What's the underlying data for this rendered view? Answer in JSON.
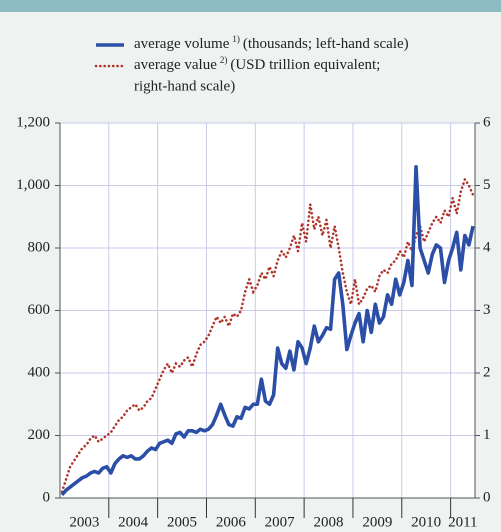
{
  "chart_data": {
    "type": "line",
    "categories": [
      null,
      null,
      null,
      null,
      null,
      "2003",
      null,
      null,
      null,
      null,
      null,
      null,
      null,
      null,
      null,
      null,
      null,
      "2004",
      null,
      null,
      null,
      null,
      null,
      null,
      null,
      null,
      null,
      null,
      null,
      "2005",
      null,
      null,
      null,
      null,
      null,
      null,
      null,
      null,
      null,
      null,
      null,
      "2006",
      null,
      null,
      null,
      null,
      null,
      null,
      null,
      null,
      null,
      null,
      null,
      "2007",
      null,
      null,
      null,
      null,
      null,
      null,
      null,
      null,
      null,
      null,
      null,
      "2008",
      null,
      null,
      null,
      null,
      null,
      null,
      null,
      null,
      null,
      null,
      null,
      "2009",
      null,
      null,
      null,
      null,
      null,
      null,
      null,
      null,
      null,
      null,
      null,
      "2010",
      null,
      null,
      null,
      null,
      null,
      null,
      null,
      null,
      "2011",
      null,
      null,
      null
    ],
    "series": [
      {
        "name": "average volume",
        "note": "1)",
        "description": [
          "(thousands; left-hand scale)"
        ],
        "color": "#2b4ea6",
        "axis": "y",
        "style": "solid",
        "values": [
          10,
          25,
          35,
          45,
          55,
          65,
          70,
          80,
          85,
          80,
          95,
          100,
          80,
          110,
          125,
          135,
          130,
          135,
          125,
          125,
          135,
          150,
          160,
          155,
          175,
          180,
          185,
          175,
          205,
          210,
          195,
          215,
          215,
          210,
          220,
          215,
          220,
          235,
          265,
          300,
          265,
          235,
          230,
          260,
          255,
          290,
          285,
          300,
          300,
          380,
          310,
          300,
          330,
          480,
          430,
          415,
          470,
          410,
          500,
          480,
          430,
          480,
          550,
          500,
          520,
          545,
          540,
          700,
          720,
          620,
          475,
          520,
          560,
          590,
          500,
          600,
          530,
          620,
          560,
          580,
          650,
          620,
          700,
          650,
          690,
          760,
          680,
          1060,
          800,
          760,
          720,
          780,
          810,
          800,
          690,
          760,
          800,
          850,
          730,
          840,
          810,
          870
        ]
      },
      {
        "name": "average value",
        "note": "2)",
        "description": [
          "(USD trillion equivalent;",
          "right-hand scale)"
        ],
        "color": "#b0362c",
        "axis": "y2",
        "style": "dotted",
        "values": [
          0.1,
          0.3,
          0.5,
          0.6,
          0.7,
          0.8,
          0.85,
          0.95,
          1.0,
          0.9,
          0.95,
          1.0,
          1.05,
          1.15,
          1.25,
          1.3,
          1.4,
          1.45,
          1.5,
          1.4,
          1.45,
          1.55,
          1.6,
          1.75,
          1.9,
          2.05,
          2.15,
          2.0,
          2.15,
          2.1,
          2.2,
          2.25,
          2.1,
          2.3,
          2.45,
          2.5,
          2.6,
          2.75,
          2.9,
          2.8,
          2.9,
          2.75,
          2.95,
          2.9,
          3.0,
          3.3,
          3.5,
          3.3,
          3.4,
          3.6,
          3.5,
          3.7,
          3.55,
          3.8,
          3.95,
          3.85,
          4.0,
          4.2,
          3.95,
          4.4,
          4.1,
          4.7,
          4.3,
          4.5,
          4.2,
          4.45,
          4.0,
          4.35,
          4.0,
          3.6,
          3.3,
          3.1,
          3.5,
          3.1,
          3.2,
          3.35,
          3.4,
          3.3,
          3.55,
          3.65,
          3.6,
          3.75,
          3.8,
          3.95,
          3.85,
          4.1,
          3.95,
          4.2,
          4.35,
          4.1,
          4.25,
          4.4,
          4.5,
          4.4,
          4.6,
          4.5,
          4.8,
          4.55,
          4.9,
          5.1,
          5.0,
          4.85
        ]
      }
    ],
    "ylim": [
      0,
      1200
    ],
    "yticks": [
      0,
      200,
      400,
      600,
      800,
      {
        "value": 1000,
        "label": "1,000"
      },
      {
        "value": 1200,
        "label": "1,200"
      }
    ],
    "y2lim": [
      0,
      6
    ],
    "y2ticks": [
      0,
      1,
      2,
      3,
      4,
      5,
      6
    ],
    "grid": true
  }
}
